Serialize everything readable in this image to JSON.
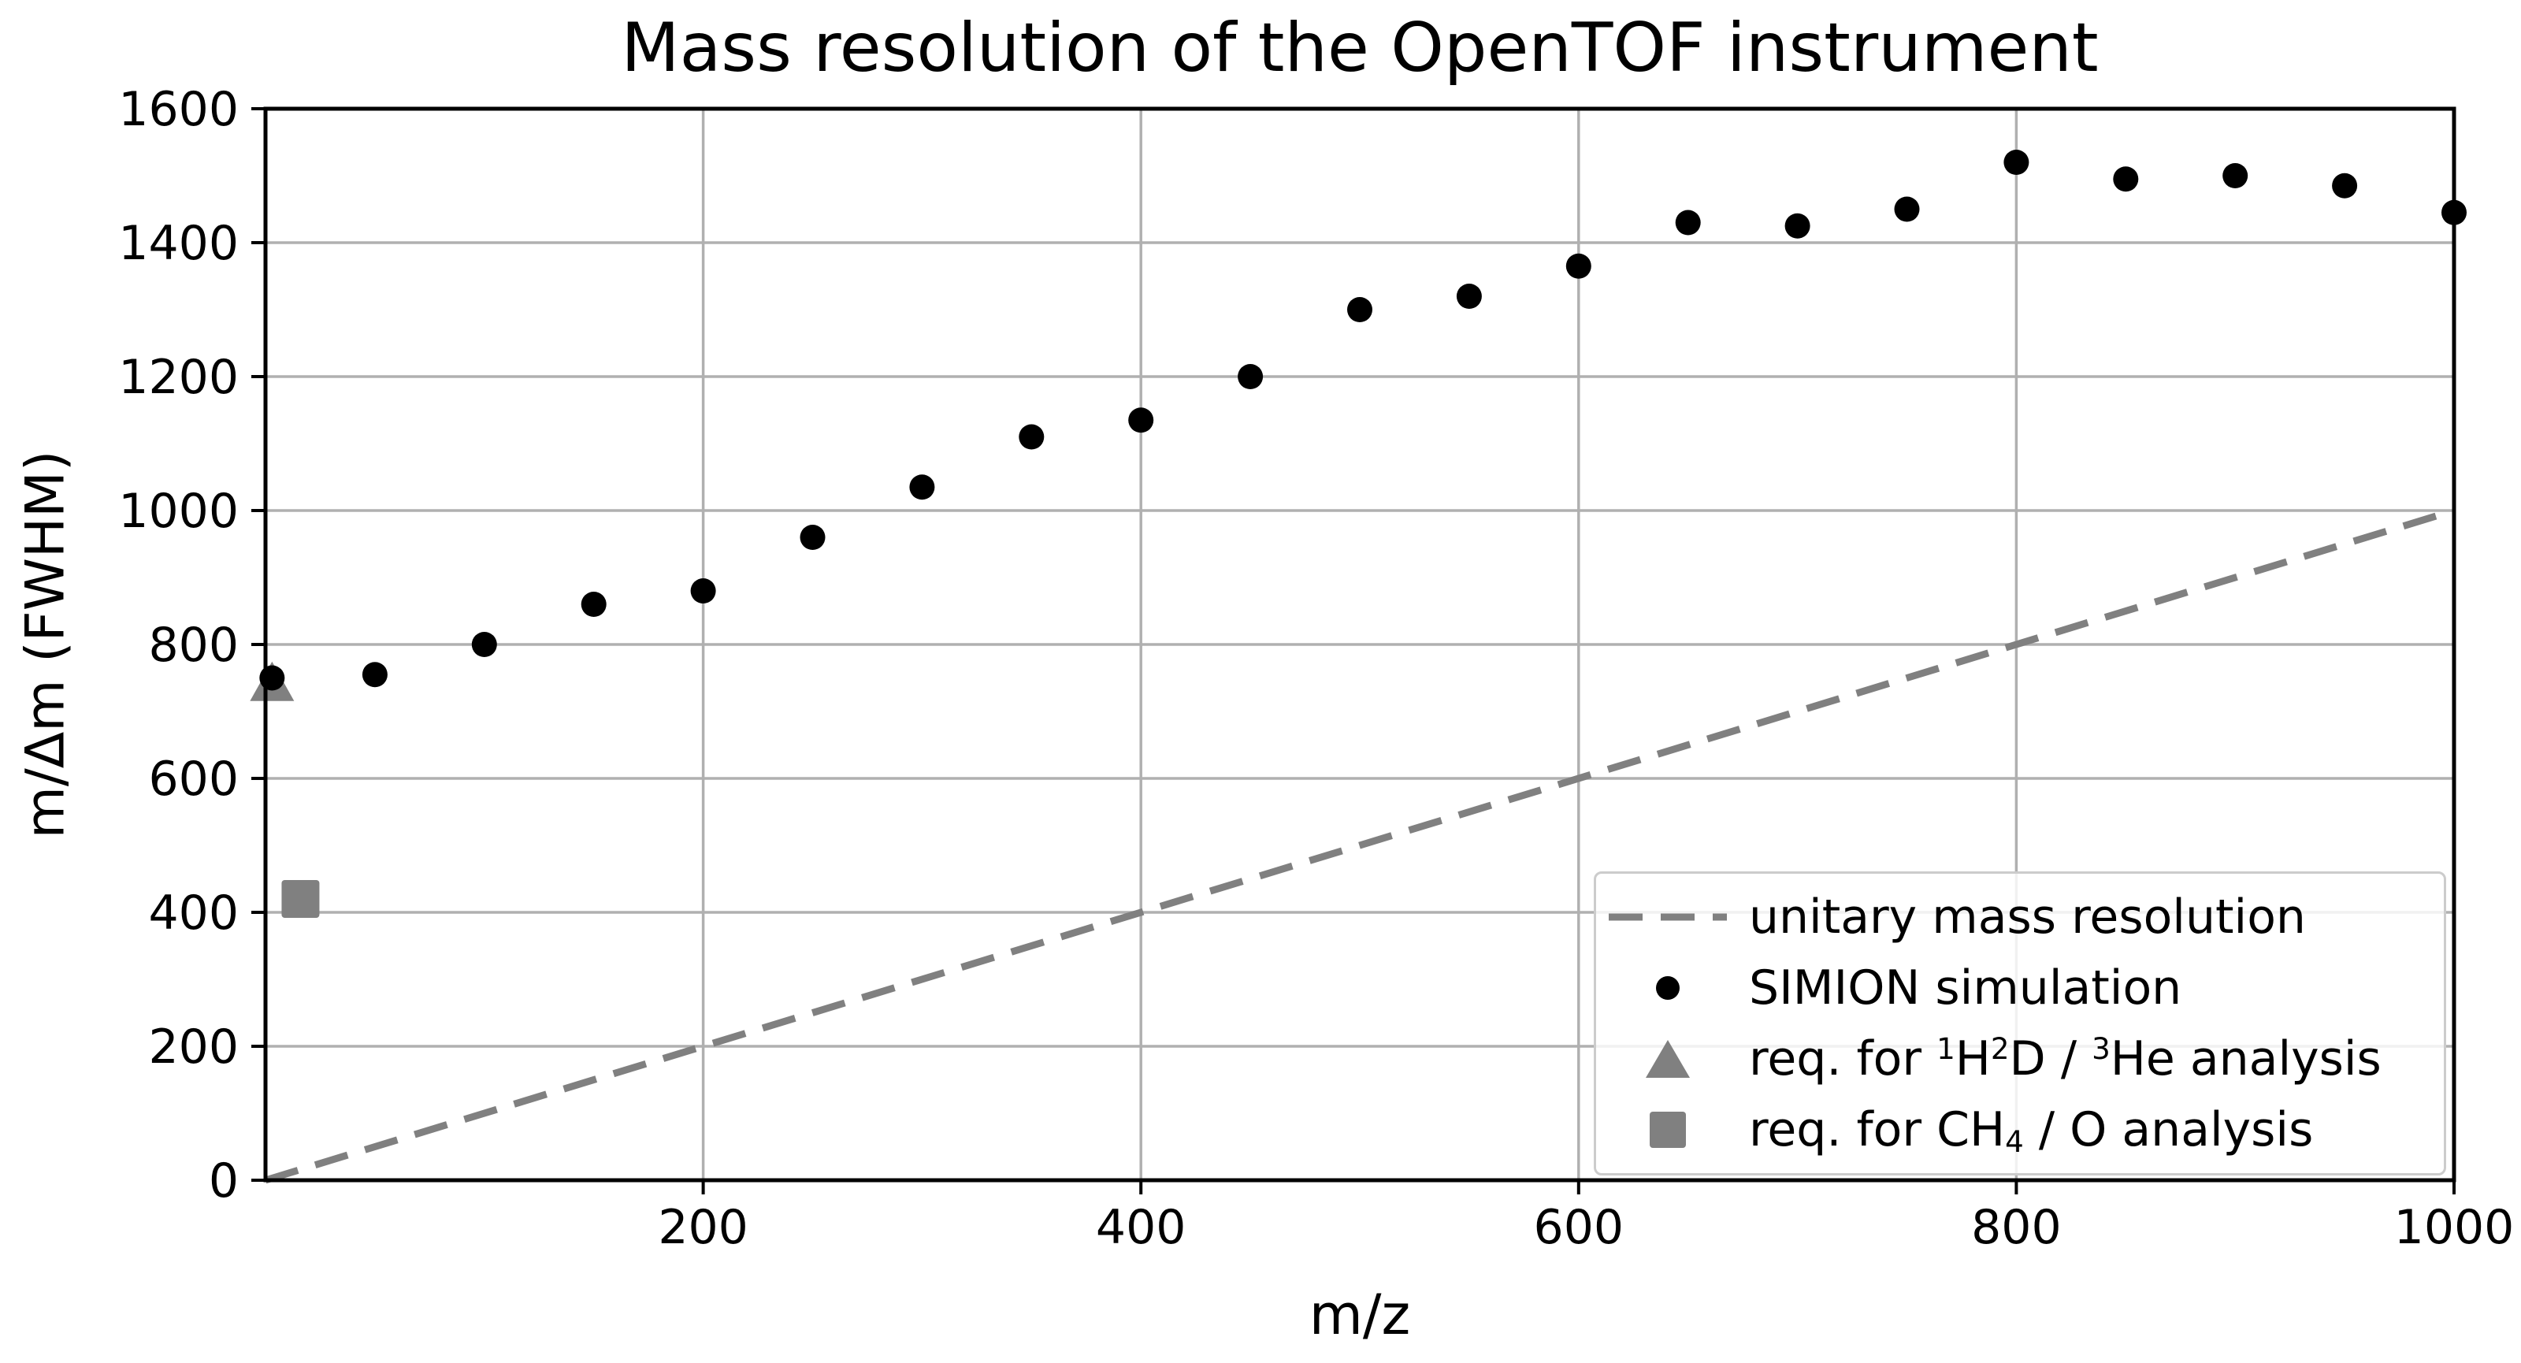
{
  "chart_data": {
    "type": "scatter",
    "title": "Mass resolution of the OpenTOF instrument",
    "xlabel": "m/z",
    "ylabel": "m/Δm (FWHM)",
    "xlim": [
      0,
      1000
    ],
    "ylim": [
      0,
      1600
    ],
    "xticks": [
      200,
      400,
      600,
      800,
      1000
    ],
    "yticks": [
      0,
      200,
      400,
      600,
      800,
      1000,
      1200,
      1400,
      1600
    ],
    "grid": true,
    "legend_position": "lower right",
    "colors": {
      "simion_dots": "#000000",
      "unitary_line": "#808080",
      "requirement_markers": "#808080",
      "gridlines": "#b0b0b0",
      "axes": "#000000",
      "legend_border": "#cccccc",
      "background": "#ffffff"
    },
    "series": [
      {
        "name": "unitary mass resolution",
        "type": "line",
        "style": "dashed",
        "color": "#808080",
        "x": [
          0,
          1000
        ],
        "y": [
          0,
          1000
        ]
      },
      {
        "name": "SIMION simulation",
        "type": "scatter",
        "marker": "circle",
        "color": "#000000",
        "points": [
          [
            3,
            750
          ],
          [
            50,
            755
          ],
          [
            100,
            800
          ],
          [
            150,
            860
          ],
          [
            200,
            880
          ],
          [
            250,
            960
          ],
          [
            300,
            1035
          ],
          [
            350,
            1110
          ],
          [
            400,
            1135
          ],
          [
            450,
            1200
          ],
          [
            500,
            1300
          ],
          [
            550,
            1320
          ],
          [
            600,
            1365
          ],
          [
            650,
            1430
          ],
          [
            700,
            1425
          ],
          [
            750,
            1450
          ],
          [
            800,
            1520
          ],
          [
            850,
            1495
          ],
          [
            900,
            1500
          ],
          [
            950,
            1485
          ],
          [
            1000,
            1445
          ]
        ]
      },
      {
        "name": "req. for ¹H²D / ³He analysis",
        "type": "scatter",
        "marker": "triangle",
        "color": "#808080",
        "points": [
          [
            3,
            745
          ]
        ]
      },
      {
        "name": "req. for CH₄ / O analysis",
        "type": "scatter",
        "marker": "square",
        "color": "#808080",
        "points": [
          [
            16,
            420
          ]
        ]
      }
    ],
    "legend": [
      {
        "handle": "dashed-line",
        "label": "unitary mass resolution",
        "label_parts": [
          [
            "t",
            "unitary mass resolution"
          ]
        ]
      },
      {
        "handle": "dot",
        "label": "SIMION simulation",
        "label_parts": [
          [
            "t",
            "SIMION simulation"
          ]
        ]
      },
      {
        "handle": "triangle",
        "label": "req. for ¹H²D / ³He analysis",
        "label_parts": [
          [
            "t",
            "req. for "
          ],
          [
            "sup",
            "1"
          ],
          [
            "t",
            "H"
          ],
          [
            "sup",
            "2"
          ],
          [
            "t",
            "D / "
          ],
          [
            "sup",
            "3"
          ],
          [
            "t",
            "He analysis"
          ]
        ]
      },
      {
        "handle": "square",
        "label": "req. for CH₄ / O analysis",
        "label_parts": [
          [
            "t",
            "req. for CH"
          ],
          [
            "sub",
            "4"
          ],
          [
            "t",
            " / O analysis"
          ]
        ]
      }
    ]
  }
}
